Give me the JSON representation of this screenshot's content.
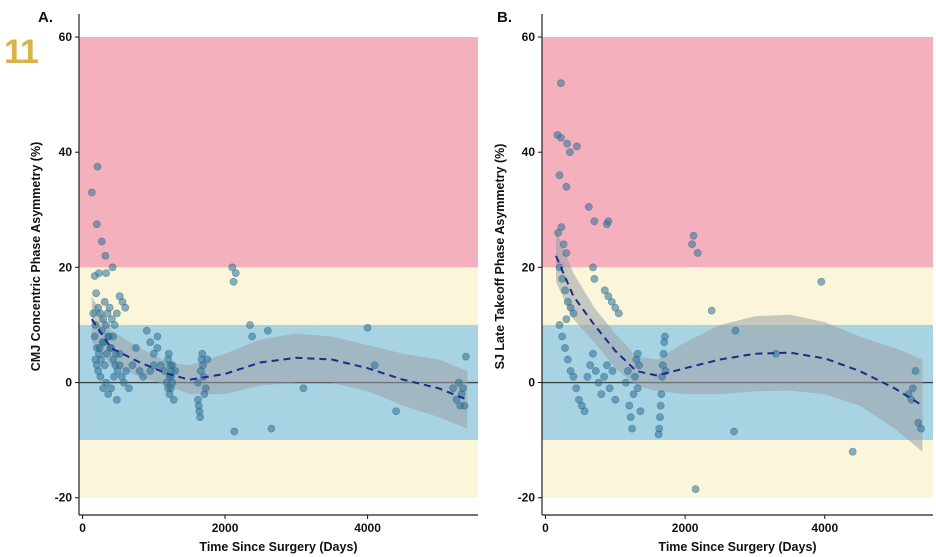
{
  "page_number": "11",
  "chart_data": [
    {
      "type": "scatter",
      "panel": "A.",
      "xlabel": "Time Since Surgery (Days)",
      "ylabel": "CMJ Concentric Phase Asymmetry (%)",
      "xlim": [
        -50,
        5550
      ],
      "ylim": [
        -23,
        64
      ],
      "xticks": [
        0,
        2000,
        4000
      ],
      "yticks": [
        -20,
        0,
        20,
        40,
        60
      ],
      "bands": [
        {
          "y0": 20,
          "y1": 60,
          "color": "#f4b0bc"
        },
        {
          "y0": 10,
          "y1": 20,
          "color": "#fbf5d9"
        },
        {
          "y0": -10,
          "y1": 10,
          "color": "#a8d3e3"
        },
        {
          "y0": -20,
          "y1": -10,
          "color": "#fbf5d9"
        }
      ],
      "zero_line": true,
      "grid": false,
      "points": [
        [
          130,
          33
        ],
        [
          210,
          37.5
        ],
        [
          200,
          27.5
        ],
        [
          270,
          24.5
        ],
        [
          320,
          22
        ],
        [
          330,
          19
        ],
        [
          230,
          19
        ],
        [
          170,
          18.5
        ],
        [
          420,
          20
        ],
        [
          520,
          15
        ],
        [
          150,
          12
        ],
        [
          180,
          10
        ],
        [
          190,
          15.5
        ],
        [
          220,
          13
        ],
        [
          250,
          12
        ],
        [
          290,
          11
        ],
        [
          310,
          14
        ],
        [
          350,
          12
        ],
        [
          380,
          13
        ],
        [
          410,
          11
        ],
        [
          450,
          10
        ],
        [
          480,
          12
        ],
        [
          560,
          14
        ],
        [
          600,
          13
        ],
        [
          170,
          8
        ],
        [
          200,
          6
        ],
        [
          230,
          5
        ],
        [
          260,
          4
        ],
        [
          280,
          7
        ],
        [
          310,
          3
        ],
        [
          340,
          5
        ],
        [
          370,
          8
        ],
        [
          400,
          6
        ],
        [
          430,
          4
        ],
        [
          460,
          3
        ],
        [
          490,
          2
        ],
        [
          520,
          5
        ],
        [
          550,
          1
        ],
        [
          580,
          0
        ],
        [
          610,
          2
        ],
        [
          650,
          -1
        ],
        [
          700,
          3
        ],
        [
          750,
          6
        ],
        [
          800,
          2
        ],
        [
          850,
          1
        ],
        [
          900,
          9
        ],
        [
          950,
          7
        ],
        [
          1000,
          5
        ],
        [
          1050,
          8
        ],
        [
          1100,
          3
        ],
        [
          180,
          4
        ],
        [
          220,
          2
        ],
        [
          250,
          1
        ],
        [
          290,
          -1
        ],
        [
          330,
          0
        ],
        [
          360,
          -2
        ],
        [
          400,
          -1
        ],
        [
          440,
          1
        ],
        [
          480,
          -3
        ],
        [
          200,
          3
        ],
        [
          240,
          6
        ],
        [
          270,
          9
        ],
        [
          300,
          7
        ],
        [
          330,
          10
        ],
        [
          360,
          8
        ],
        [
          390,
          6
        ],
        [
          430,
          8
        ],
        [
          470,
          5
        ],
        [
          520,
          3
        ],
        [
          1150,
          2
        ],
        [
          1180,
          0
        ],
        [
          1200,
          -1
        ],
        [
          1220,
          -2
        ],
        [
          1240,
          1
        ],
        [
          1260,
          3
        ],
        [
          1280,
          -3
        ],
        [
          1300,
          2
        ],
        [
          1200,
          4
        ],
        [
          1210,
          5
        ],
        [
          1230,
          3
        ],
        [
          1250,
          2
        ],
        [
          1240,
          -1
        ],
        [
          1260,
          0
        ],
        [
          1220,
          1
        ],
        [
          1620,
          -3
        ],
        [
          1630,
          -4
        ],
        [
          1640,
          -5
        ],
        [
          1650,
          -6
        ],
        [
          1660,
          2
        ],
        [
          1670,
          4
        ],
        [
          1680,
          5
        ],
        [
          1690,
          3
        ],
        [
          1700,
          1
        ],
        [
          1620,
          0
        ],
        [
          1710,
          -2
        ],
        [
          1730,
          -1
        ],
        [
          1750,
          4
        ],
        [
          2100,
          20
        ],
        [
          2150,
          19
        ],
        [
          2120,
          17.5
        ],
        [
          2130,
          -8.5
        ],
        [
          2350,
          10
        ],
        [
          2380,
          8
        ],
        [
          2600,
          9
        ],
        [
          2650,
          -8
        ],
        [
          3100,
          -1
        ],
        [
          4000,
          9.5
        ],
        [
          4100,
          3
        ],
        [
          4400,
          -5
        ],
        [
          5200,
          -1
        ],
        [
          5250,
          -3
        ],
        [
          5300,
          -4
        ],
        [
          5320,
          -2
        ],
        [
          5340,
          -1
        ],
        [
          5360,
          -4
        ],
        [
          5380,
          4.5
        ],
        [
          5280,
          0
        ],
        [
          1000,
          3
        ],
        [
          950,
          2
        ],
        [
          1050,
          6
        ]
      ],
      "trend": [
        [
          130,
          11
        ],
        [
          400,
          6
        ],
        [
          800,
          3.5
        ],
        [
          1200,
          1.5
        ],
        [
          1500,
          0.5
        ],
        [
          2000,
          1.5
        ],
        [
          2500,
          3.5
        ],
        [
          3000,
          4.3
        ],
        [
          3500,
          4
        ],
        [
          4000,
          2.5
        ],
        [
          4500,
          0.5
        ],
        [
          5000,
          -1
        ],
        [
          5400,
          -3
        ]
      ],
      "ci_upper": [
        [
          130,
          15
        ],
        [
          400,
          9
        ],
        [
          800,
          6
        ],
        [
          1200,
          3.5
        ],
        [
          1500,
          3
        ],
        [
          2000,
          5
        ],
        [
          2500,
          7.5
        ],
        [
          3000,
          8.5
        ],
        [
          3500,
          8
        ],
        [
          4000,
          6.5
        ],
        [
          4500,
          5
        ],
        [
          5000,
          4
        ],
        [
          5400,
          2
        ]
      ],
      "ci_lower": [
        [
          130,
          7
        ],
        [
          400,
          3
        ],
        [
          800,
          1
        ],
        [
          1200,
          -0.5
        ],
        [
          1500,
          -2
        ],
        [
          2000,
          -2
        ],
        [
          2500,
          -0.5
        ],
        [
          3000,
          0
        ],
        [
          3500,
          0
        ],
        [
          4000,
          -1.5
        ],
        [
          4500,
          -4
        ],
        [
          5000,
          -6
        ],
        [
          5400,
          -8
        ]
      ]
    },
    {
      "type": "scatter",
      "panel": "B.",
      "xlabel": "Time Since Surgery (Days)",
      "ylabel": "SJ Late Takeoff Phase Asymmetry (%)",
      "xlim": [
        -50,
        5550
      ],
      "ylim": [
        -23,
        64
      ],
      "xticks": [
        0,
        2000,
        4000
      ],
      "yticks": [
        -20,
        0,
        20,
        40,
        60
      ],
      "bands": [
        {
          "y0": 20,
          "y1": 60,
          "color": "#f4b0bc"
        },
        {
          "y0": 10,
          "y1": 20,
          "color": "#fbf5d9"
        },
        {
          "y0": -10,
          "y1": 10,
          "color": "#a8d3e3"
        },
        {
          "y0": -20,
          "y1": -10,
          "color": "#fbf5d9"
        }
      ],
      "zero_line": true,
      "grid": false,
      "points": [
        [
          220,
          52
        ],
        [
          170,
          43
        ],
        [
          220,
          42.5
        ],
        [
          310,
          41.5
        ],
        [
          350,
          40
        ],
        [
          450,
          41
        ],
        [
          200,
          36
        ],
        [
          300,
          34
        ],
        [
          180,
          26
        ],
        [
          230,
          27
        ],
        [
          260,
          24
        ],
        [
          300,
          22.5
        ],
        [
          620,
          30.5
        ],
        [
          700,
          28
        ],
        [
          880,
          27.5
        ],
        [
          900,
          28
        ],
        [
          2120,
          25.5
        ],
        [
          2100,
          24
        ],
        [
          2180,
          22.5
        ],
        [
          200,
          20
        ],
        [
          240,
          18
        ],
        [
          280,
          16
        ],
        [
          320,
          14
        ],
        [
          360,
          13
        ],
        [
          400,
          12
        ],
        [
          680,
          20
        ],
        [
          700,
          18
        ],
        [
          850,
          16
        ],
        [
          900,
          15
        ],
        [
          950,
          14
        ],
        [
          1000,
          13
        ],
        [
          1050,
          12
        ],
        [
          2380,
          12.5
        ],
        [
          3950,
          17.5
        ],
        [
          200,
          10
        ],
        [
          240,
          8
        ],
        [
          280,
          6
        ],
        [
          320,
          4
        ],
        [
          360,
          2
        ],
        [
          400,
          1
        ],
        [
          440,
          -1
        ],
        [
          480,
          -3
        ],
        [
          520,
          -4
        ],
        [
          560,
          -5
        ],
        [
          600,
          1
        ],
        [
          640,
          3
        ],
        [
          680,
          5
        ],
        [
          720,
          2
        ],
        [
          760,
          0
        ],
        [
          800,
          -2
        ],
        [
          840,
          1
        ],
        [
          880,
          3
        ],
        [
          920,
          -1
        ],
        [
          960,
          2
        ],
        [
          1000,
          -3
        ],
        [
          1200,
          -4
        ],
        [
          1220,
          -6
        ],
        [
          1240,
          -8
        ],
        [
          1260,
          -2
        ],
        [
          1280,
          1
        ],
        [
          1300,
          4
        ],
        [
          1320,
          5
        ],
        [
          1340,
          3
        ],
        [
          1360,
          -5
        ],
        [
          1620,
          -9
        ],
        [
          1630,
          -8
        ],
        [
          1640,
          -6
        ],
        [
          1650,
          -4
        ],
        [
          1660,
          -2
        ],
        [
          1670,
          1
        ],
        [
          1680,
          3
        ],
        [
          1690,
          5
        ],
        [
          1700,
          7
        ],
        [
          1710,
          8
        ],
        [
          1720,
          2
        ],
        [
          2150,
          -18.5
        ],
        [
          2700,
          -8.5
        ],
        [
          2720,
          9
        ],
        [
          3300,
          5
        ],
        [
          4400,
          -12
        ],
        [
          5200,
          -2
        ],
        [
          5240,
          -3
        ],
        [
          5300,
          2
        ],
        [
          5340,
          -7
        ],
        [
          5380,
          -8
        ],
        [
          5260,
          -1
        ],
        [
          1150,
          0
        ],
        [
          1180,
          2
        ],
        [
          1320,
          -1
        ],
        [
          300,
          11
        ]
      ],
      "trend": [
        [
          150,
          22
        ],
        [
          400,
          15
        ],
        [
          700,
          10
        ],
        [
          1000,
          5.5
        ],
        [
          1300,
          2
        ],
        [
          1600,
          1.2
        ],
        [
          2000,
          2.5
        ],
        [
          2500,
          4
        ],
        [
          3000,
          5
        ],
        [
          3500,
          5.2
        ],
        [
          4000,
          4.2
        ],
        [
          4500,
          2
        ],
        [
          5000,
          -1
        ],
        [
          5400,
          -4
        ]
      ],
      "ci_upper": [
        [
          150,
          26.5
        ],
        [
          400,
          19
        ],
        [
          700,
          13
        ],
        [
          1000,
          8.5
        ],
        [
          1300,
          4.5
        ],
        [
          1600,
          4
        ],
        [
          2000,
          7
        ],
        [
          2500,
          10
        ],
        [
          3000,
          11.5
        ],
        [
          3500,
          11.8
        ],
        [
          4000,
          10.5
        ],
        [
          4500,
          8
        ],
        [
          5000,
          6
        ],
        [
          5400,
          4
        ]
      ],
      "ci_lower": [
        [
          150,
          17.5
        ],
        [
          400,
          11
        ],
        [
          700,
          7
        ],
        [
          1000,
          2.5
        ],
        [
          1300,
          -0.5
        ],
        [
          1600,
          -1.5
        ],
        [
          2000,
          -2
        ],
        [
          2500,
          -2
        ],
        [
          3000,
          -1.5
        ],
        [
          3500,
          -1.4
        ],
        [
          4000,
          -2
        ],
        [
          4500,
          -4
        ],
        [
          5000,
          -8
        ],
        [
          5400,
          -12
        ]
      ]
    }
  ],
  "colors": {
    "point": "#2e6f95",
    "trend": "#1f2a8c",
    "ci": "#9aa0a6"
  }
}
